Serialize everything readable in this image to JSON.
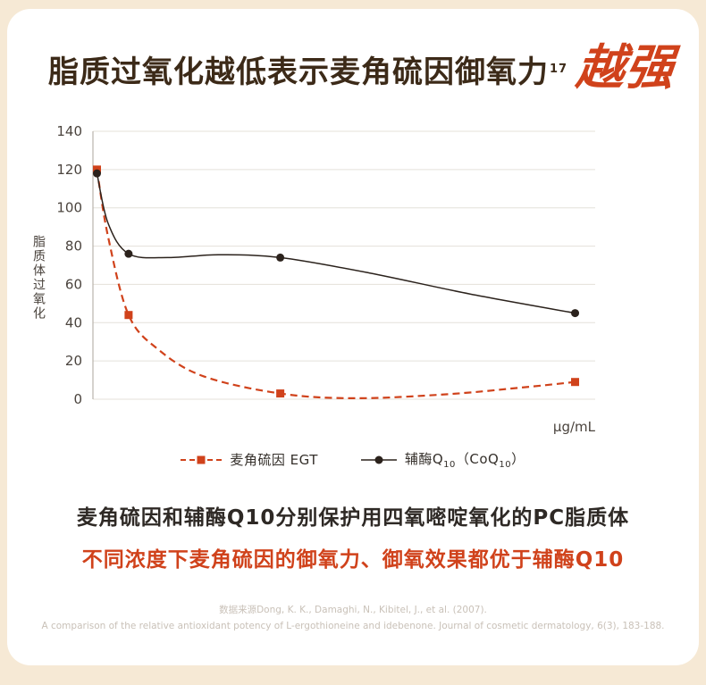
{
  "colors": {
    "accent": "#d0421b",
    "background": "#f6e9d5",
    "title_text": "#3c2a18",
    "summary_text": "#2e2925",
    "muted_text": "#c9c1b8",
    "tick_text": "#4b443e",
    "grid": "#e4e0da",
    "axis": "#b9b3ac"
  },
  "header": {
    "title_main": "脂质过氧化越低表示麦角硫因御氧力",
    "title_sup": "17",
    "title_accent": "越强"
  },
  "chart_data": {
    "type": "line",
    "title": "",
    "ylabel": "脂质体过氧化",
    "xlabel": "μg/mL",
    "ylim": [
      0,
      140
    ],
    "yticks": [
      0,
      20,
      40,
      60,
      80,
      100,
      120,
      140
    ],
    "grid": "horizontal",
    "legend_position": "bottom",
    "series": [
      {
        "name": "麦角硫因 EGT",
        "color": "#d0421b",
        "style": "dashed",
        "marker": "square",
        "points": [
          [
            0.008,
            120
          ],
          [
            0.071,
            44
          ],
          [
            0.373,
            3
          ],
          [
            0.96,
            9
          ]
        ],
        "path": [
          [
            0.008,
            120
          ],
          [
            0.03,
            85
          ],
          [
            0.071,
            44
          ],
          [
            0.13,
            26
          ],
          [
            0.22,
            12
          ],
          [
            0.373,
            3
          ],
          [
            0.52,
            0.5
          ],
          [
            0.7,
            2.5
          ],
          [
            0.85,
            6
          ],
          [
            0.96,
            9
          ]
        ]
      },
      {
        "name": "辅酶Q10 (CoQ10)",
        "color": "#2b221c",
        "style": "solid",
        "marker": "circle",
        "points": [
          [
            0.008,
            118
          ],
          [
            0.071,
            76
          ],
          [
            0.373,
            74
          ],
          [
            0.96,
            45
          ]
        ],
        "path": [
          [
            0.008,
            118
          ],
          [
            0.03,
            92
          ],
          [
            0.071,
            76
          ],
          [
            0.15,
            74
          ],
          [
            0.25,
            75.5
          ],
          [
            0.373,
            74
          ],
          [
            0.55,
            66
          ],
          [
            0.75,
            55
          ],
          [
            0.96,
            45
          ]
        ]
      }
    ]
  },
  "legend": {
    "egt_label": "麦角硫因 EGT",
    "coq_pre": "辅酶Q",
    "coq_sub1": "10",
    "coq_mid": "（CoQ",
    "coq_sub2": "10",
    "coq_post": "）"
  },
  "summary": {
    "line1": "麦角硫因和辅酶Q10分别保护用四氧嘧啶氧化的PC脂质体",
    "line2": "不同浓度下麦角硫因的御氧力、御氧效果都优于辅酶Q10"
  },
  "footer": {
    "line1": "数据来源Dong, K. K., Damaghi, N., Kibitel, J., et al. (2007).",
    "line2": "A comparison of the relative antioxidant potency of L-ergothioneine and idebenone. Journal of cosmetic dermatology, 6(3), 183-188."
  }
}
